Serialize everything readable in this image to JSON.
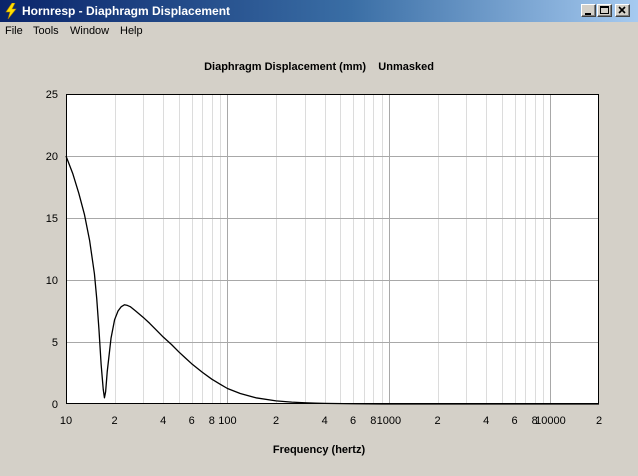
{
  "window": {
    "title": "Hornresp - Diaphragm Displacement",
    "minimize_icon": "minimize-icon",
    "maximize_icon": "maximize-icon",
    "close_icon": "close-icon",
    "app_icon": "lightning-icon"
  },
  "menu": {
    "items": [
      {
        "label": "File"
      },
      {
        "label": "Tools"
      },
      {
        "label": "Window"
      },
      {
        "label": "Help"
      }
    ]
  },
  "chart": {
    "title": "Diaphragm Displacement (mm)    Unmasked",
    "xlabel": "Frequency (hertz)"
  },
  "chart_data": {
    "type": "line",
    "title": "Diaphragm Displacement (mm)    Unmasked",
    "xlabel": "Frequency (hertz)",
    "ylabel": "",
    "xscale": "log",
    "xlim": [
      10,
      20000
    ],
    "ylim": [
      0,
      25
    ],
    "grid": true,
    "y_ticks": [
      "0",
      "5",
      "10",
      "15",
      "20",
      "25"
    ],
    "x_ticks": [
      {
        "v": 10,
        "label": "10"
      },
      {
        "v": 20,
        "label": "2"
      },
      {
        "v": 40,
        "label": "4"
      },
      {
        "v": 60,
        "label": "6"
      },
      {
        "v": 80,
        "label": "8"
      },
      {
        "v": 100,
        "label": "100"
      },
      {
        "v": 200,
        "label": "2"
      },
      {
        "v": 400,
        "label": "4"
      },
      {
        "v": 600,
        "label": "6"
      },
      {
        "v": 800,
        "label": "8"
      },
      {
        "v": 1000,
        "label": "1000"
      },
      {
        "v": 2000,
        "label": "2"
      },
      {
        "v": 4000,
        "label": "4"
      },
      {
        "v": 6000,
        "label": "6"
      },
      {
        "v": 8000,
        "label": "8"
      },
      {
        "v": 10000,
        "label": "10000"
      },
      {
        "v": 20000,
        "label": "2"
      }
    ],
    "series": [
      {
        "color": "#000000",
        "points": [
          [
            10,
            20.0
          ],
          [
            11,
            18.6
          ],
          [
            12,
            17.0
          ],
          [
            13,
            15.3
          ],
          [
            14,
            13.2
          ],
          [
            15,
            10.5
          ],
          [
            15.5,
            8.5
          ],
          [
            16,
            6.0
          ],
          [
            16.5,
            3.2
          ],
          [
            17,
            1.2
          ],
          [
            17.3,
            0.5
          ],
          [
            17.6,
            1.0
          ],
          [
            18,
            2.6
          ],
          [
            19,
            5.3
          ],
          [
            20,
            6.8
          ],
          [
            21,
            7.5
          ],
          [
            22,
            7.85
          ],
          [
            23,
            8.0
          ],
          [
            24,
            7.95
          ],
          [
            25,
            7.85
          ],
          [
            27,
            7.5
          ],
          [
            30,
            7.0
          ],
          [
            33,
            6.5
          ],
          [
            36,
            6.0
          ],
          [
            40,
            5.4
          ],
          [
            45,
            4.8
          ],
          [
            50,
            4.2
          ],
          [
            55,
            3.7
          ],
          [
            60,
            3.25
          ],
          [
            70,
            2.55
          ],
          [
            80,
            2.0
          ],
          [
            90,
            1.6
          ],
          [
            100,
            1.25
          ],
          [
            120,
            0.85
          ],
          [
            150,
            0.5
          ],
          [
            200,
            0.25
          ],
          [
            250,
            0.15
          ],
          [
            300,
            0.1
          ],
          [
            350,
            0.07
          ],
          [
            400,
            0.05
          ],
          [
            600,
            0.02
          ],
          [
            1000,
            0.0
          ],
          [
            20000,
            0.0
          ]
        ]
      }
    ]
  }
}
